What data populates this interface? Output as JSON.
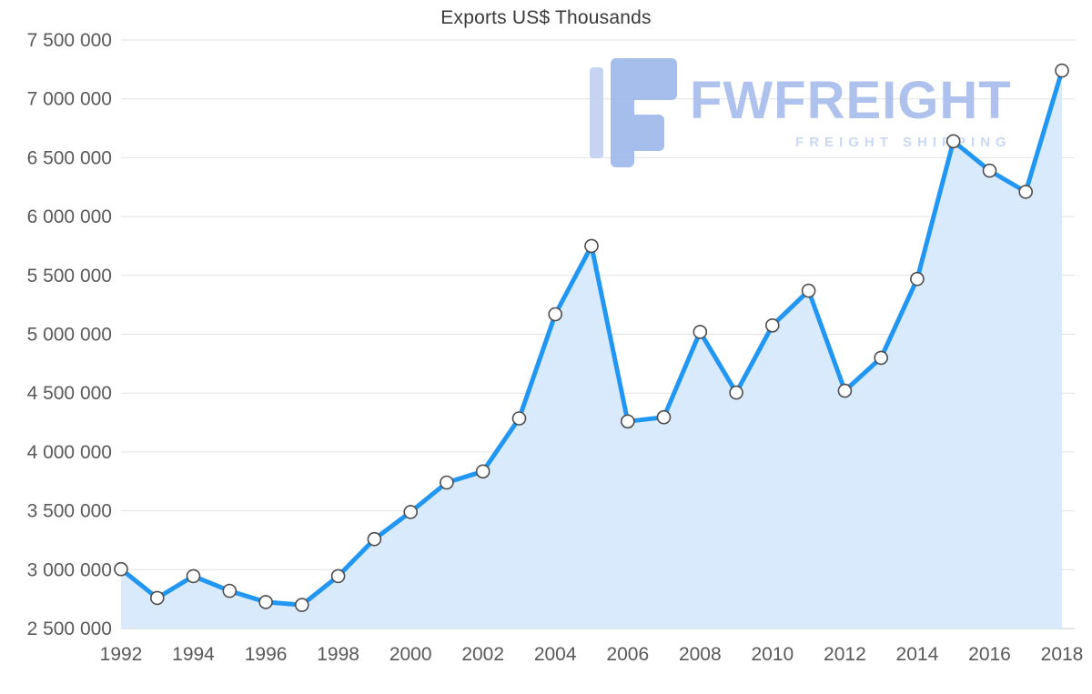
{
  "page": {
    "title": "Exports US$ Thousands"
  },
  "watermark": {
    "brand": "FWFREIGHT",
    "tagline": "FREIGHT SHIPPING"
  },
  "chart_data": {
    "type": "area",
    "title": "Exports US$ Thousands",
    "xlabel": "",
    "ylabel": "",
    "legend": "none",
    "grid": "horizontal",
    "x": [
      1992,
      1993,
      1994,
      1995,
      1996,
      1997,
      1998,
      1999,
      2000,
      2001,
      2002,
      2003,
      2004,
      2005,
      2006,
      2007,
      2008,
      2009,
      2010,
      2011,
      2012,
      2013,
      2014,
      2015,
      2016,
      2017,
      2018
    ],
    "values": [
      3005000,
      2760000,
      2945000,
      2820000,
      2725000,
      2700000,
      2945000,
      3260000,
      3490000,
      3740000,
      3835000,
      4285000,
      5170000,
      5750000,
      4260000,
      4295000,
      5020000,
      4505000,
      5075000,
      5370000,
      4520000,
      4800000,
      5470000,
      6640000,
      6390000,
      6210000,
      7240000
    ],
    "ylim": [
      2500000,
      7500000
    ],
    "y_tick_step": 500000,
    "y_ticks": [
      {
        "value": 2500000,
        "label": "2 500 000"
      },
      {
        "value": 3000000,
        "label": "3 000 000"
      },
      {
        "value": 3500000,
        "label": "3 500 000"
      },
      {
        "value": 4000000,
        "label": "4 000 000"
      },
      {
        "value": 4500000,
        "label": "4 500 000"
      },
      {
        "value": 5000000,
        "label": "5 000 000"
      },
      {
        "value": 5500000,
        "label": "5 500 000"
      },
      {
        "value": 6000000,
        "label": "6 000 000"
      },
      {
        "value": 6500000,
        "label": "6 500 000"
      },
      {
        "value": 7000000,
        "label": "7 000 000"
      },
      {
        "value": 7500000,
        "label": "7 500 000"
      }
    ],
    "x_ticks": [
      {
        "value": 1992,
        "label": "1992"
      },
      {
        "value": 1994,
        "label": "1994"
      },
      {
        "value": 1996,
        "label": "1996"
      },
      {
        "value": 1998,
        "label": "1998"
      },
      {
        "value": 2000,
        "label": "2000"
      },
      {
        "value": 2002,
        "label": "2002"
      },
      {
        "value": 2004,
        "label": "2004"
      },
      {
        "value": 2006,
        "label": "2006"
      },
      {
        "value": 2008,
        "label": "2008"
      },
      {
        "value": 2010,
        "label": "2010"
      },
      {
        "value": 2012,
        "label": "2012"
      },
      {
        "value": 2014,
        "label": "2014"
      },
      {
        "value": 2016,
        "label": "2016"
      },
      {
        "value": 2018,
        "label": "2018"
      }
    ],
    "colors": {
      "line": "#2196f3",
      "fill": "#d9eafc",
      "marker_fill": "#ffffff",
      "marker_stroke": "#4d4d4d",
      "grid": "#e2e2e2",
      "axis": "#c9c9c9",
      "tick_text": "#595959",
      "title_text": "#3a3a3a",
      "watermark": "#a7bcec",
      "watermark_light": "#c4d4f3"
    }
  }
}
